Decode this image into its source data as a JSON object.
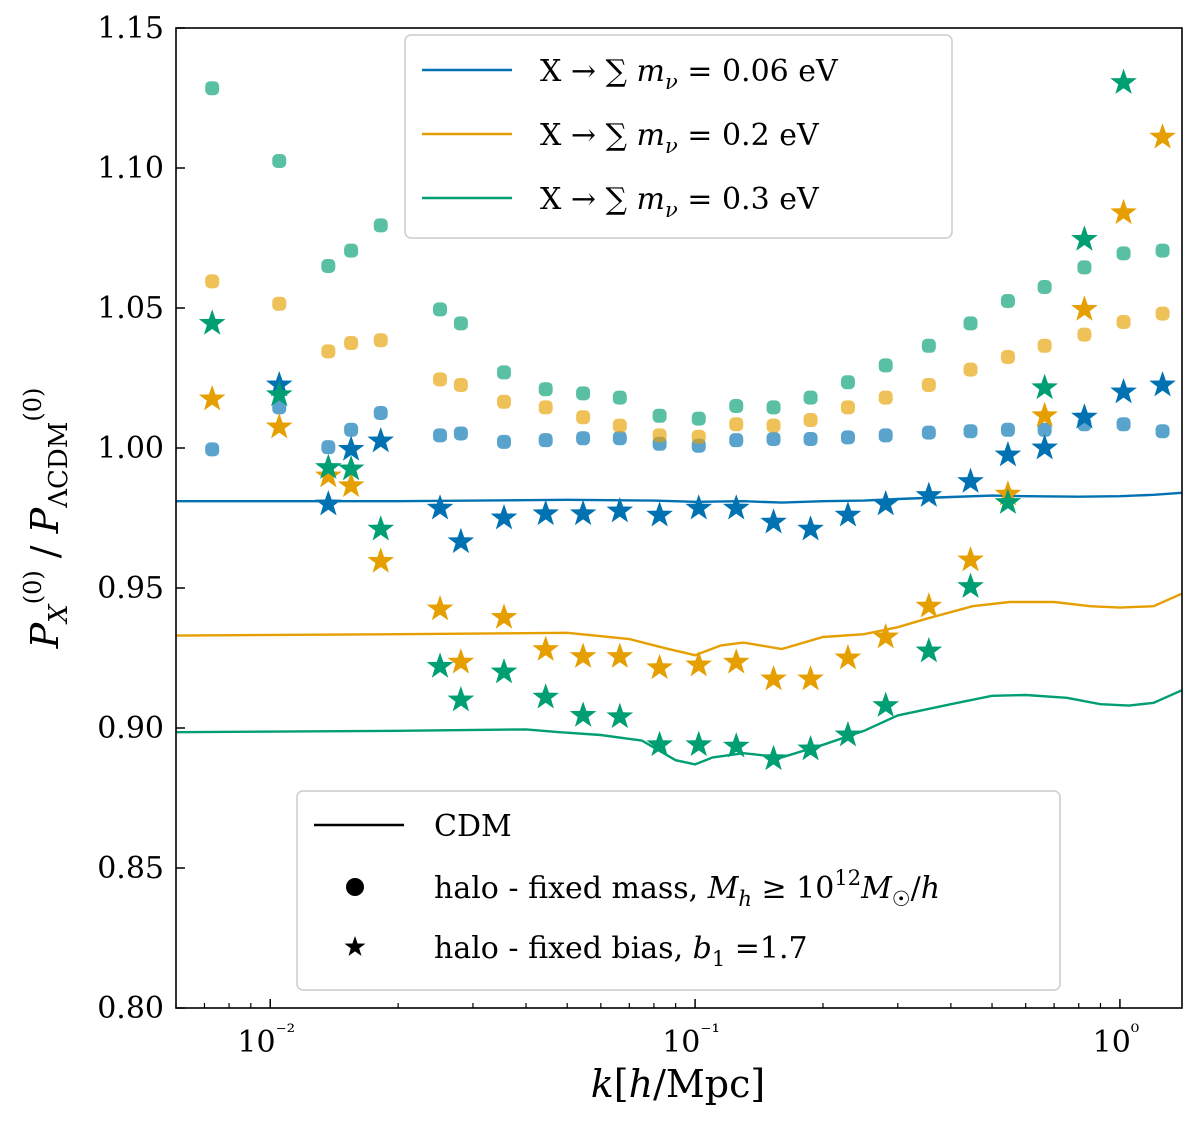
{
  "chart_data": {
    "type": "scatter",
    "xscale": "log",
    "xlim": [
      0.006,
      1.4
    ],
    "ylim": [
      0.8,
      1.15
    ],
    "xlabel": "k[h/Mpc]",
    "ylabel": "P_X^(0) / P_ΛCDM^(0)",
    "xticks": [
      {
        "value": 0.01,
        "label": "10⁻²"
      },
      {
        "value": 0.1,
        "label": "10⁻¹"
      },
      {
        "value": 1.0,
        "label": "10⁰"
      }
    ],
    "yticks": [
      "0.80",
      "0.85",
      "0.90",
      "0.95",
      "1.00",
      "1.05",
      "1.10",
      "1.15"
    ],
    "grid": false,
    "colors": {
      "mnu_006": "#0072B2",
      "mnu_02": "#E69F00",
      "mnu_03": "#009E73"
    },
    "legend_top": {
      "placement": "top-center",
      "entries": [
        {
          "label": "X → ∑ mν = 0.06 eV",
          "color": "#0072B2"
        },
        {
          "label": "X → ∑ mν = 0.2 eV",
          "color": "#E69F00"
        },
        {
          "label": "X → ∑ mν = 0.3 eV",
          "color": "#009E73"
        }
      ]
    },
    "legend_bottom": {
      "placement": "bottom-center",
      "entries": [
        {
          "marker": "line",
          "label": "CDM"
        },
        {
          "marker": "circle",
          "label": "halo - fixed mass, M_h ≥ 10¹² M☉/h"
        },
        {
          "marker": "star",
          "label": "halo - fixed bias, b₁ =1.7"
        }
      ]
    },
    "k": [
      0.0073,
      0.0105,
      0.0137,
      0.0155,
      0.0182,
      0.0251,
      0.0281,
      0.0355,
      0.0445,
      0.0545,
      0.0665,
      0.0825,
      0.102,
      0.125,
      0.153,
      0.187,
      0.229,
      0.281,
      0.355,
      0.445,
      0.545,
      0.665,
      0.825,
      1.02,
      1.26
    ],
    "series": [
      {
        "name": "X → ∑ mν = 0.06 eV",
        "color": "#0072B2",
        "cdm_line": {
          "k": [
            0.006,
            0.02,
            0.05,
            0.08,
            0.1,
            0.13,
            0.16,
            0.2,
            0.25,
            0.3,
            0.4,
            0.5,
            0.6,
            0.8,
            1.0,
            1.2,
            1.4
          ],
          "values": [
            0.981,
            0.981,
            0.9815,
            0.9812,
            0.9808,
            0.981,
            0.9805,
            0.981,
            0.9812,
            0.9818,
            0.9825,
            0.983,
            0.9828,
            0.9826,
            0.9828,
            0.9833,
            0.984
          ]
        },
        "fixed_mass": [
          0.9995,
          1.0145,
          1.0003,
          1.0065,
          1.0125,
          1.0045,
          1.0052,
          1.0022,
          1.0028,
          1.0035,
          1.0035,
          1.0015,
          1.0008,
          1.0028,
          1.0032,
          1.0032,
          1.0038,
          1.0045,
          1.0055,
          1.006,
          1.0065,
          1.0065,
          1.0085,
          1.0085,
          1.006
        ],
        "fixed_bias": [
          null,
          1.0225,
          0.98,
          0.9995,
          1.0025,
          0.9785,
          0.9665,
          0.975,
          0.9765,
          0.9765,
          0.9775,
          0.976,
          0.9785,
          0.9785,
          0.9735,
          0.971,
          0.976,
          0.98,
          0.983,
          0.988,
          0.9975,
          1.0,
          1.011,
          1.02,
          1.0225
        ]
      },
      {
        "name": "X → ∑ mν = 0.2 eV",
        "color": "#E69F00",
        "cdm_line": {
          "k": [
            0.006,
            0.02,
            0.05,
            0.07,
            0.085,
            0.1,
            0.115,
            0.13,
            0.16,
            0.2,
            0.25,
            0.3,
            0.35,
            0.45,
            0.55,
            0.7,
            0.85,
            1.0,
            1.2,
            1.4
          ],
          "values": [
            0.933,
            0.9335,
            0.934,
            0.9318,
            0.9285,
            0.926,
            0.9295,
            0.9305,
            0.9282,
            0.9325,
            0.9335,
            0.936,
            0.939,
            0.9435,
            0.945,
            0.945,
            0.9435,
            0.943,
            0.9435,
            0.948
          ]
        },
        "fixed_mass": [
          1.0595,
          1.0515,
          1.0345,
          1.0375,
          1.0385,
          1.0245,
          1.0225,
          1.0165,
          1.0145,
          1.011,
          1.008,
          1.0045,
          1.004,
          1.0085,
          1.008,
          1.01,
          1.0145,
          1.018,
          1.0225,
          1.028,
          1.0325,
          1.0365,
          1.0405,
          1.045,
          1.048
        ],
        "fixed_bias": [
          1.0175,
          1.0075,
          0.99,
          0.9865,
          0.9595,
          0.9425,
          0.9235,
          0.9395,
          0.928,
          0.9255,
          0.9255,
          0.9215,
          0.9225,
          0.9235,
          0.9175,
          0.9175,
          0.925,
          0.9325,
          0.9435,
          0.96,
          0.9835,
          1.0115,
          1.0495,
          1.084,
          1.111
        ]
      },
      {
        "name": "X → ∑ mν = 0.3 eV",
        "color": "#009E73",
        "cdm_line": {
          "k": [
            0.006,
            0.02,
            0.04,
            0.048,
            0.06,
            0.075,
            0.09,
            0.1,
            0.11,
            0.13,
            0.16,
            0.2,
            0.25,
            0.3,
            0.4,
            0.5,
            0.6,
            0.75,
            0.9,
            1.05,
            1.2,
            1.4
          ],
          "values": [
            0.8985,
            0.899,
            0.8995,
            0.8985,
            0.8975,
            0.8955,
            0.8885,
            0.887,
            0.8895,
            0.891,
            0.8895,
            0.894,
            0.899,
            0.9045,
            0.9085,
            0.9115,
            0.9118,
            0.9108,
            0.9085,
            0.908,
            0.909,
            0.9135
          ]
        },
        "fixed_mass": [
          1.1285,
          1.1025,
          1.065,
          1.0705,
          1.0795,
          1.0495,
          1.0445,
          1.027,
          1.021,
          1.0195,
          1.018,
          1.0115,
          1.0105,
          1.015,
          1.0145,
          1.018,
          1.0235,
          1.0295,
          1.0365,
          1.0445,
          1.0525,
          1.0575,
          1.0645,
          1.0695,
          1.0705
        ],
        "fixed_bias": [
          1.0445,
          1.019,
          0.993,
          0.9925,
          0.971,
          0.922,
          0.91,
          0.92,
          0.911,
          0.9045,
          0.904,
          0.894,
          0.894,
          0.8935,
          0.889,
          0.8925,
          0.8975,
          0.908,
          0.9275,
          0.9505,
          0.9805,
          1.0215,
          1.0745,
          1.1305,
          null
        ]
      }
    ]
  }
}
